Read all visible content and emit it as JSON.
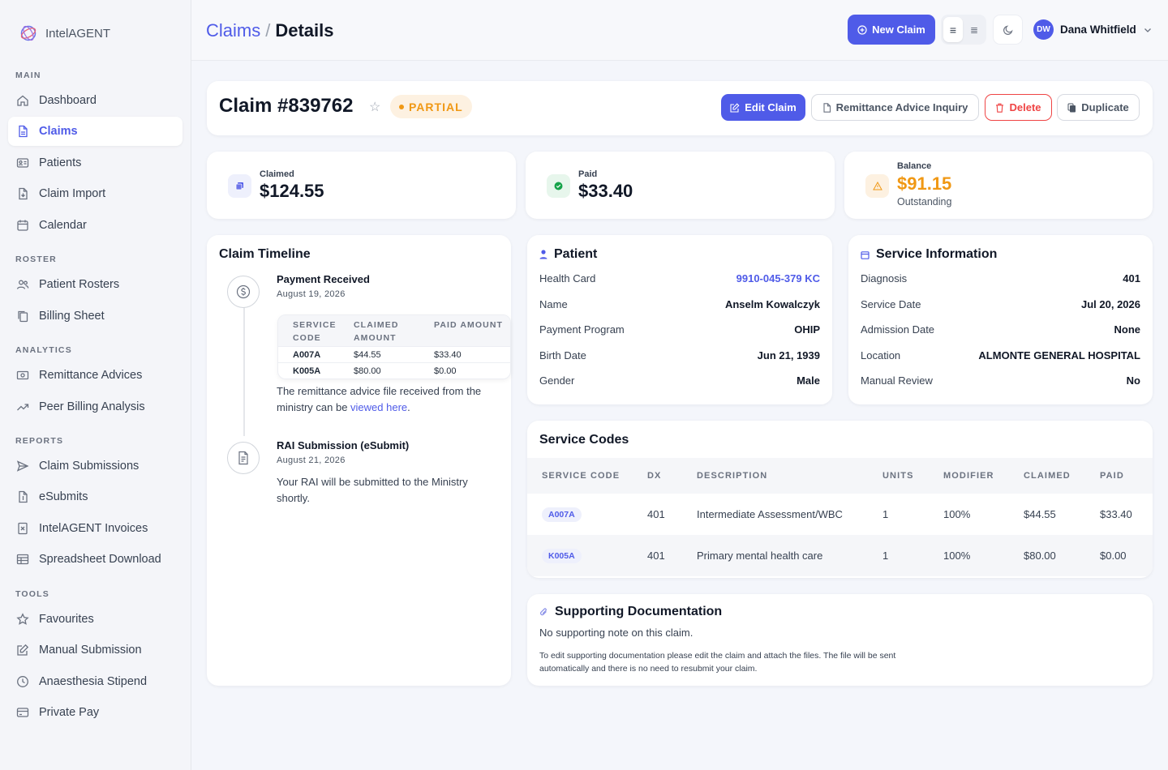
{
  "brand": {
    "name": "IntelAGENT"
  },
  "sidebar": {
    "sections": {
      "main": "MAIN",
      "roster": "ROSTER",
      "analytics": "ANALYTICS",
      "reports": "REPORTS",
      "tools": "TOOLS"
    },
    "items": {
      "dashboard": "Dashboard",
      "claims": "Claims",
      "patients": "Patients",
      "claim_import": "Claim Import",
      "calendar": "Calendar",
      "patient_rosters": "Patient Rosters",
      "billing_sheet": "Billing Sheet",
      "remittance_advices": "Remittance Advices",
      "peer_billing": "Peer Billing Analysis",
      "claim_submissions": "Claim Submissions",
      "esubmits": "eSubmits",
      "invoices": "IntelAGENT Invoices",
      "spreadsheet": "Spreadsheet Download",
      "favourites": "Favourites",
      "manual_submission": "Manual Submission",
      "anaesthesia": "Anaesthesia Stipend",
      "private_pay": "Private Pay"
    },
    "active": "claims"
  },
  "header": {
    "breadcrumb_parent": "Claims",
    "breadcrumb_sep": "/",
    "breadcrumb_current": "Details",
    "new_claim": "New Claim",
    "user_initials": "DW",
    "user_name": "Dana Whitfield"
  },
  "claim": {
    "title": "Claim #839762",
    "status": "PARTIAL",
    "actions": {
      "edit": "Edit Claim",
      "rai": "Remittance Advice Inquiry",
      "delete": "Delete",
      "duplicate": "Duplicate"
    }
  },
  "stats": {
    "claimed": {
      "label": "Claimed",
      "value": "$124.55"
    },
    "paid": {
      "label": "Paid",
      "value": "$33.40"
    },
    "balance": {
      "label": "Balance",
      "value": "$91.15",
      "sub": "Outstanding"
    }
  },
  "timeline": {
    "title": "Claim Timeline",
    "events": [
      {
        "title": "Payment Received",
        "date": "August 19, 2026",
        "table_headers": [
          "SERVICE CODE",
          "CLAIMED AMOUNT",
          "PAID AMOUNT"
        ],
        "rows": [
          [
            "A007A",
            "$44.55",
            "$33.40"
          ],
          [
            "K005A",
            "$80.00",
            "$0.00"
          ]
        ],
        "text_before": "The remittance advice file received from the ministry can be ",
        "link": "viewed here",
        "text_after": "."
      },
      {
        "title": "RAI Submission (eSubmit)",
        "date": "August 21, 2026",
        "text": "Your RAI will be submitted to the Ministry shortly."
      }
    ]
  },
  "patient": {
    "title": "Patient",
    "fields": [
      {
        "k": "Health Card",
        "v": "9910-045-379 KC"
      },
      {
        "k": "Name",
        "v": "Anselm Kowalczyk"
      },
      {
        "k": "Payment Program",
        "v": "OHIP"
      },
      {
        "k": "Birth Date",
        "v": "Jun 21, 1939"
      },
      {
        "k": "Gender",
        "v": "Male"
      }
    ]
  },
  "service_info": {
    "title": "Service Information",
    "fields": [
      {
        "k": "Diagnosis",
        "v": "401"
      },
      {
        "k": "Service Date",
        "v": "Jul 20, 2026"
      },
      {
        "k": "Admission Date",
        "v": "None"
      },
      {
        "k": "Location",
        "v": "ALMONTE GENERAL HOSPITAL"
      },
      {
        "k": "Manual Review",
        "v": "No"
      }
    ]
  },
  "service_codes": {
    "title": "Service Codes",
    "headers": [
      "SERVICE CODE",
      "DX",
      "DESCRIPTION",
      "UNITS",
      "MODIFIER",
      "CLAIMED",
      "PAID"
    ],
    "rows": [
      [
        "A007A",
        "401",
        "Intermediate Assessment/WBC",
        "1",
        "100%",
        "$44.55",
        "$33.40"
      ],
      [
        "K005A",
        "401",
        "Primary mental health care",
        "1",
        "100%",
        "$80.00",
        "$0.00"
      ]
    ]
  },
  "docs": {
    "title": "Supporting Documentation",
    "note": "No supporting note on this claim.",
    "help": "To edit supporting documentation please edit the claim and attach the files. The file will be sent automatically and there is no need to resubmit your claim."
  },
  "colors": {
    "accent": "#4f5be8",
    "warning": "#f09814",
    "danger": "#ef4444",
    "success": "#16a34a"
  }
}
